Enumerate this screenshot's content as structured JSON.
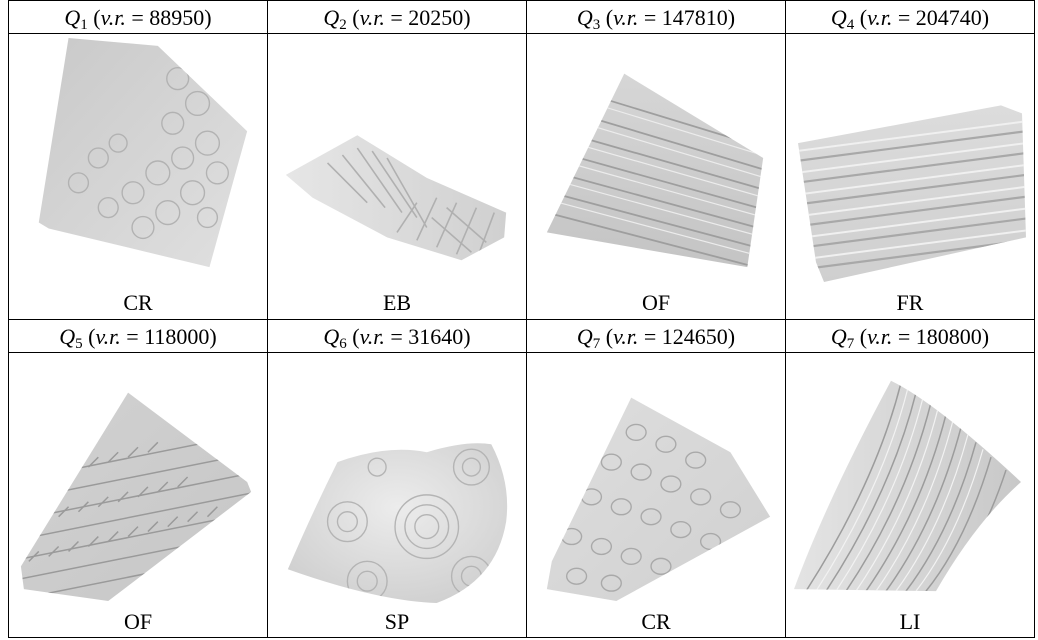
{
  "cells": [
    {
      "q": "Q",
      "sub": "1",
      "vr": "88950",
      "label": "CR",
      "texture": "circles"
    },
    {
      "q": "Q",
      "sub": "2",
      "vr": "20250",
      "label": "EB",
      "texture": "herringbone"
    },
    {
      "q": "Q",
      "sub": "3",
      "vr": "147810",
      "label": "OF",
      "texture": "stripes"
    },
    {
      "q": "Q",
      "sub": "4",
      "vr": "204740",
      "label": "FR",
      "texture": "ribs"
    },
    {
      "q": "Q",
      "sub": "5",
      "vr": "118000",
      "label": "OF",
      "texture": "braids"
    },
    {
      "q": "Q",
      "sub": "6",
      "vr": "31640",
      "label": "SP",
      "texture": "spirals"
    },
    {
      "q": "Q",
      "sub": "7",
      "vr": "124650",
      "label": "CR",
      "texture": "circles"
    },
    {
      "q": "Q",
      "sub": "7",
      "vr": "180800",
      "label": "LI",
      "texture": "lines"
    }
  ],
  "vr_prefix": "v.r.",
  "surface_color": "#d9d9d9"
}
